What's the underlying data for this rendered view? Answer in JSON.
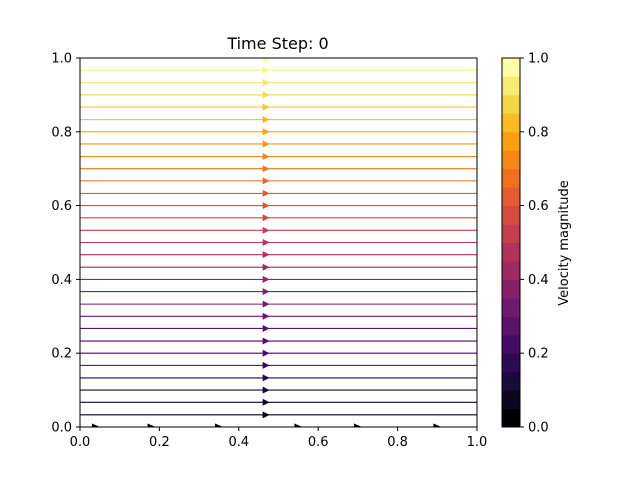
{
  "chart_data": {
    "type": "streamplot",
    "title": "Time Step: 0",
    "xlabel": "",
    "ylabel": "",
    "xlim": [
      0.0,
      1.0
    ],
    "ylim": [
      0.0,
      1.0
    ],
    "x_ticks": [
      "0.0",
      "0.2",
      "0.4",
      "0.6",
      "0.8",
      "1.0"
    ],
    "y_ticks": [
      "0.0",
      "0.2",
      "0.4",
      "0.6",
      "0.8",
      "1.0"
    ],
    "grid": false,
    "flow": "uniform horizontal flow to the right; velocity magnitude increases linearly with y (u = y)",
    "streamline_y": [
      0.0,
      0.033,
      0.067,
      0.1,
      0.133,
      0.167,
      0.2,
      0.233,
      0.267,
      0.3,
      0.333,
      0.367,
      0.4,
      0.433,
      0.467,
      0.5,
      0.533,
      0.567,
      0.6,
      0.633,
      0.667,
      0.7,
      0.733,
      0.767,
      0.8,
      0.833,
      0.867,
      0.9,
      0.933,
      0.967,
      1.0
    ],
    "colormap": "inferno",
    "colorbar": {
      "label": "Velocity magnitude",
      "range": [
        0.0,
        1.0
      ],
      "ticks": [
        "0.0",
        "0.2",
        "0.4",
        "0.6",
        "0.8",
        "1.0"
      ],
      "levels": 20
    }
  }
}
